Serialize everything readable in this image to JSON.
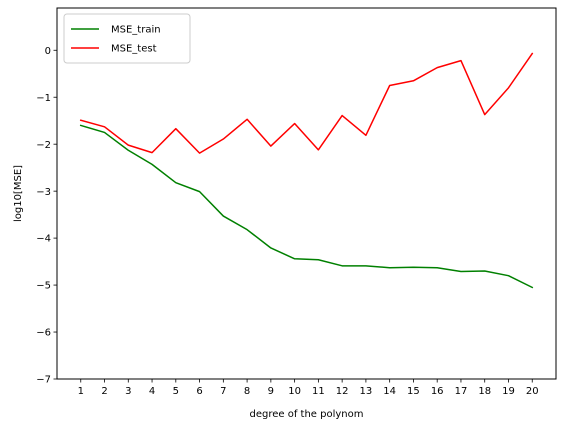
{
  "chart_data": {
    "type": "line",
    "title": "",
    "xlabel": "degree of the polynom",
    "ylabel": "log10[MSE]",
    "x": [
      1,
      2,
      3,
      4,
      5,
      6,
      7,
      8,
      9,
      10,
      11,
      12,
      13,
      14,
      15,
      16,
      17,
      18,
      19,
      20
    ],
    "x_ticks": [
      "1",
      "2",
      "3",
      "4",
      "5",
      "6",
      "7",
      "8",
      "9",
      "10",
      "11",
      "12",
      "13",
      "14",
      "15",
      "16",
      "17",
      "18",
      "19",
      "20"
    ],
    "y_ticks": [
      {
        "value": 0,
        "label": "0"
      },
      {
        "value": -1,
        "label": "−1"
      },
      {
        "value": -2,
        "label": "−2"
      },
      {
        "value": -3,
        "label": "−3"
      },
      {
        "value": -4,
        "label": "−4"
      },
      {
        "value": -5,
        "label": "−5"
      },
      {
        "value": -6,
        "label": "−6"
      },
      {
        "value": -7,
        "label": "−7"
      }
    ],
    "xlim": [
      0.0,
      21.0
    ],
    "ylim": [
      -7.0,
      0.9
    ],
    "grid": false,
    "legend_position": "top-left",
    "series": [
      {
        "name": "MSE_train",
        "color": "#008000",
        "values": [
          -1.6,
          -1.75,
          -2.13,
          -2.43,
          -2.82,
          -3.01,
          -3.53,
          -3.82,
          -4.21,
          -4.44,
          -4.46,
          -4.59,
          -4.59,
          -4.63,
          -4.62,
          -4.63,
          -4.71,
          -4.7,
          -4.8,
          -5.05
        ]
      },
      {
        "name": "MSE_test",
        "color": "#ff0000",
        "values": [
          -1.49,
          -1.63,
          -2.02,
          -2.18,
          -1.67,
          -2.19,
          -1.89,
          -1.47,
          -2.04,
          -1.56,
          -2.12,
          -1.39,
          -1.81,
          -0.75,
          -0.65,
          -0.37,
          -0.22,
          -1.37,
          -0.8,
          -0.07
        ]
      }
    ]
  }
}
